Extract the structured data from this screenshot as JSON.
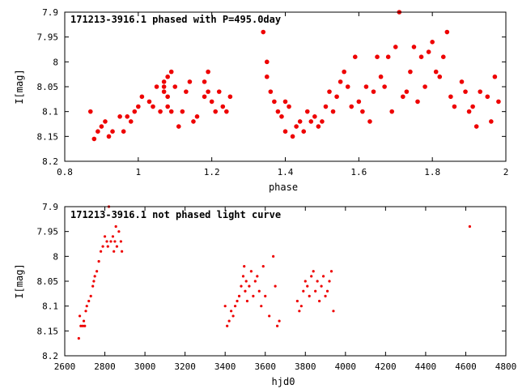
{
  "colors": {
    "points": "#ee0000",
    "axes": "#000000",
    "background": "#ffffff"
  },
  "chart_data": [
    {
      "type": "scatter",
      "title": "171213-3916.1 phased with P=495.0day",
      "xlabel": "phase",
      "ylabel": "I[mag]",
      "xlim": [
        0.8,
        2.0
      ],
      "ylim": [
        7.9,
        8.2
      ],
      "y_inverted": true,
      "grid": false,
      "legend": "none",
      "x_ticks": [
        "0.8",
        "1",
        "1.2",
        "1.4",
        "1.6",
        "1.8",
        "2"
      ],
      "y_ticks": [
        "7.9",
        "7.95",
        "8",
        "8.05",
        "8.1",
        "8.15",
        "8.2"
      ],
      "series": [
        {
          "marker": "filled-circle",
          "points": [
            [
              0.87,
              8.1
            ],
            [
              0.88,
              8.155
            ],
            [
              0.89,
              8.14
            ],
            [
              0.9,
              8.13
            ],
            [
              0.91,
              8.12
            ],
            [
              0.92,
              8.15
            ],
            [
              0.93,
              8.14
            ],
            [
              0.95,
              8.11
            ],
            [
              0.96,
              8.14
            ],
            [
              0.97,
              8.11
            ],
            [
              0.98,
              8.12
            ],
            [
              0.99,
              8.1
            ],
            [
              1.0,
              8.09
            ],
            [
              1.01,
              8.07
            ],
            [
              1.03,
              8.08
            ],
            [
              1.04,
              8.09
            ],
            [
              1.05,
              8.05
            ],
            [
              1.06,
              8.1
            ],
            [
              1.07,
              8.05
            ],
            [
              1.07,
              8.04
            ],
            [
              1.07,
              8.06
            ],
            [
              1.08,
              8.03
            ],
            [
              1.08,
              8.07
            ],
            [
              1.08,
              8.09
            ],
            [
              1.09,
              8.02
            ],
            [
              1.09,
              8.1
            ],
            [
              1.1,
              8.05
            ],
            [
              1.11,
              8.13
            ],
            [
              1.12,
              8.1
            ],
            [
              1.13,
              8.06
            ],
            [
              1.14,
              8.04
            ],
            [
              1.15,
              8.12
            ],
            [
              1.16,
              8.11
            ],
            [
              1.18,
              8.04
            ],
            [
              1.18,
              8.07
            ],
            [
              1.19,
              8.02
            ],
            [
              1.19,
              8.06
            ],
            [
              1.2,
              8.08
            ],
            [
              1.21,
              8.1
            ],
            [
              1.22,
              8.06
            ],
            [
              1.23,
              8.09
            ],
            [
              1.24,
              8.1
            ],
            [
              1.25,
              8.07
            ],
            [
              1.34,
              7.94
            ],
            [
              1.35,
              8.0
            ],
            [
              1.35,
              8.03
            ],
            [
              1.36,
              8.06
            ],
            [
              1.37,
              8.08
            ],
            [
              1.38,
              8.1
            ],
            [
              1.39,
              8.11
            ],
            [
              1.4,
              8.08
            ],
            [
              1.4,
              8.14
            ],
            [
              1.41,
              8.09
            ],
            [
              1.42,
              8.15
            ],
            [
              1.43,
              8.13
            ],
            [
              1.44,
              8.12
            ],
            [
              1.45,
              8.14
            ],
            [
              1.46,
              8.1
            ],
            [
              1.47,
              8.12
            ],
            [
              1.48,
              8.11
            ],
            [
              1.49,
              8.13
            ],
            [
              1.5,
              8.12
            ],
            [
              1.51,
              8.09
            ],
            [
              1.52,
              8.06
            ],
            [
              1.53,
              8.1
            ],
            [
              1.54,
              8.07
            ],
            [
              1.55,
              8.04
            ],
            [
              1.56,
              8.02
            ],
            [
              1.57,
              8.05
            ],
            [
              1.58,
              8.09
            ],
            [
              1.59,
              7.99
            ],
            [
              1.6,
              8.08
            ],
            [
              1.61,
              8.1
            ],
            [
              1.62,
              8.05
            ],
            [
              1.63,
              8.12
            ],
            [
              1.64,
              8.06
            ],
            [
              1.65,
              7.99
            ],
            [
              1.66,
              8.03
            ],
            [
              1.67,
              8.05
            ],
            [
              1.68,
              7.99
            ],
            [
              1.69,
              8.1
            ],
            [
              1.7,
              7.97
            ],
            [
              1.71,
              7.9
            ],
            [
              1.72,
              8.07
            ],
            [
              1.73,
              8.06
            ],
            [
              1.74,
              8.02
            ],
            [
              1.75,
              7.97
            ],
            [
              1.76,
              8.08
            ],
            [
              1.77,
              7.99
            ],
            [
              1.78,
              8.05
            ],
            [
              1.79,
              7.98
            ],
            [
              1.8,
              7.96
            ],
            [
              1.81,
              8.02
            ],
            [
              1.82,
              8.03
            ],
            [
              1.83,
              7.99
            ],
            [
              1.84,
              7.94
            ],
            [
              1.85,
              8.07
            ],
            [
              1.86,
              8.09
            ],
            [
              1.88,
              8.04
            ],
            [
              1.89,
              8.06
            ],
            [
              1.9,
              8.1
            ],
            [
              1.91,
              8.09
            ],
            [
              1.92,
              8.13
            ],
            [
              1.93,
              8.06
            ],
            [
              1.95,
              8.07
            ],
            [
              1.96,
              8.12
            ],
            [
              1.97,
              8.03
            ],
            [
              1.98,
              8.08
            ]
          ]
        }
      ]
    },
    {
      "type": "scatter",
      "title": "171213-3916.1 not phased light curve",
      "xlabel": "hjd0",
      "ylabel": "I[mag]",
      "xlim": [
        2600,
        4800
      ],
      "ylim": [
        7.9,
        8.2
      ],
      "y_inverted": true,
      "grid": false,
      "legend": "none",
      "x_ticks": [
        "2600",
        "2800",
        "3000",
        "3200",
        "3400",
        "3600",
        "3800",
        "4000",
        "4200",
        "4400",
        "4600",
        "4800"
      ],
      "y_ticks": [
        "7.9",
        "7.95",
        "8",
        "8.05",
        "8.1",
        "8.15",
        "8.2"
      ],
      "series": [
        {
          "marker": "small-dot",
          "points": [
            [
              2670,
              8.165
            ],
            [
              2675,
              8.12
            ],
            [
              2680,
              8.14
            ],
            [
              2690,
              8.14
            ],
            [
              2695,
              8.13
            ],
            [
              2700,
              8.14
            ],
            [
              2705,
              8.11
            ],
            [
              2710,
              8.1
            ],
            [
              2720,
              8.09
            ],
            [
              2730,
              8.08
            ],
            [
              2740,
              8.06
            ],
            [
              2745,
              8.05
            ],
            [
              2750,
              8.04
            ],
            [
              2760,
              8.03
            ],
            [
              2770,
              8.01
            ],
            [
              2780,
              7.99
            ],
            [
              2790,
              7.98
            ],
            [
              2800,
              7.96
            ],
            [
              2810,
              7.97
            ],
            [
              2815,
              7.98
            ],
            [
              2820,
              7.9
            ],
            [
              2830,
              7.97
            ],
            [
              2840,
              7.96
            ],
            [
              2845,
              7.99
            ],
            [
              2850,
              7.97
            ],
            [
              2855,
              7.94
            ],
            [
              2860,
              7.98
            ],
            [
              2870,
              7.95
            ],
            [
              2880,
              7.97
            ],
            [
              2885,
              7.99
            ],
            [
              3400,
              8.1
            ],
            [
              3410,
              8.14
            ],
            [
              3420,
              8.13
            ],
            [
              3430,
              8.11
            ],
            [
              3440,
              8.12
            ],
            [
              3450,
              8.1
            ],
            [
              3460,
              8.09
            ],
            [
              3470,
              8.08
            ],
            [
              3480,
              8.06
            ],
            [
              3490,
              8.04
            ],
            [
              3495,
              8.02
            ],
            [
              3500,
              8.07
            ],
            [
              3505,
              8.05
            ],
            [
              3510,
              8.09
            ],
            [
              3520,
              8.06
            ],
            [
              3530,
              8.03
            ],
            [
              3540,
              8.08
            ],
            [
              3550,
              8.05
            ],
            [
              3560,
              8.04
            ],
            [
              3570,
              8.07
            ],
            [
              3580,
              8.1
            ],
            [
              3590,
              8.02
            ],
            [
              3600,
              8.08
            ],
            [
              3620,
              8.12
            ],
            [
              3640,
              8.0
            ],
            [
              3650,
              8.06
            ],
            [
              3660,
              8.14
            ],
            [
              3670,
              8.13
            ],
            [
              3760,
              8.09
            ],
            [
              3770,
              8.11
            ],
            [
              3780,
              8.1
            ],
            [
              3790,
              8.07
            ],
            [
              3800,
              8.05
            ],
            [
              3810,
              8.06
            ],
            [
              3820,
              8.08
            ],
            [
              3830,
              8.04
            ],
            [
              3840,
              8.03
            ],
            [
              3850,
              8.07
            ],
            [
              3860,
              8.05
            ],
            [
              3870,
              8.09
            ],
            [
              3880,
              8.06
            ],
            [
              3890,
              8.04
            ],
            [
              3900,
              8.08
            ],
            [
              3910,
              8.07
            ],
            [
              3920,
              8.05
            ],
            [
              3930,
              8.03
            ],
            [
              3940,
              8.11
            ],
            [
              4620,
              7.94
            ]
          ]
        }
      ]
    }
  ]
}
